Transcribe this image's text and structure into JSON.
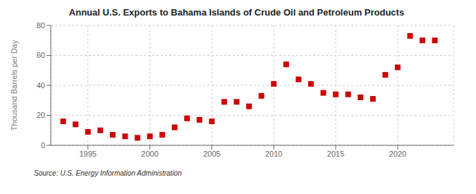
{
  "chart_data": {
    "type": "scatter",
    "title": "Annual U.S. Exports to Bahama Islands of Crude Oil and Petroleum Products",
    "ylabel": "Thousand Barrels per Day",
    "annotation": "Source: U.S. Energy Information Administration",
    "x": [
      1993,
      1994,
      1995,
      1996,
      1997,
      1998,
      1999,
      2000,
      2001,
      2002,
      2003,
      2004,
      2005,
      2006,
      2007,
      2008,
      2009,
      2010,
      2011,
      2012,
      2013,
      2014,
      2015,
      2016,
      2017,
      2018,
      2019,
      2020,
      2021,
      2022,
      2023
    ],
    "values": [
      16,
      14,
      9,
      10,
      7,
      6,
      5,
      6,
      7,
      12,
      18,
      17,
      16,
      29,
      29,
      26,
      33,
      41,
      54,
      44,
      41,
      35,
      34,
      34,
      32,
      31,
      47,
      52,
      73,
      70,
      70
    ],
    "color": "#cc0000",
    "marker": "square",
    "xlim": [
      1992,
      2024.5
    ],
    "ylim": [
      0,
      80
    ],
    "xticks": [
      1995,
      2000,
      2005,
      2010,
      2015,
      2020
    ],
    "yticks": [
      0,
      20,
      40,
      60,
      80
    ],
    "grid": true
  }
}
